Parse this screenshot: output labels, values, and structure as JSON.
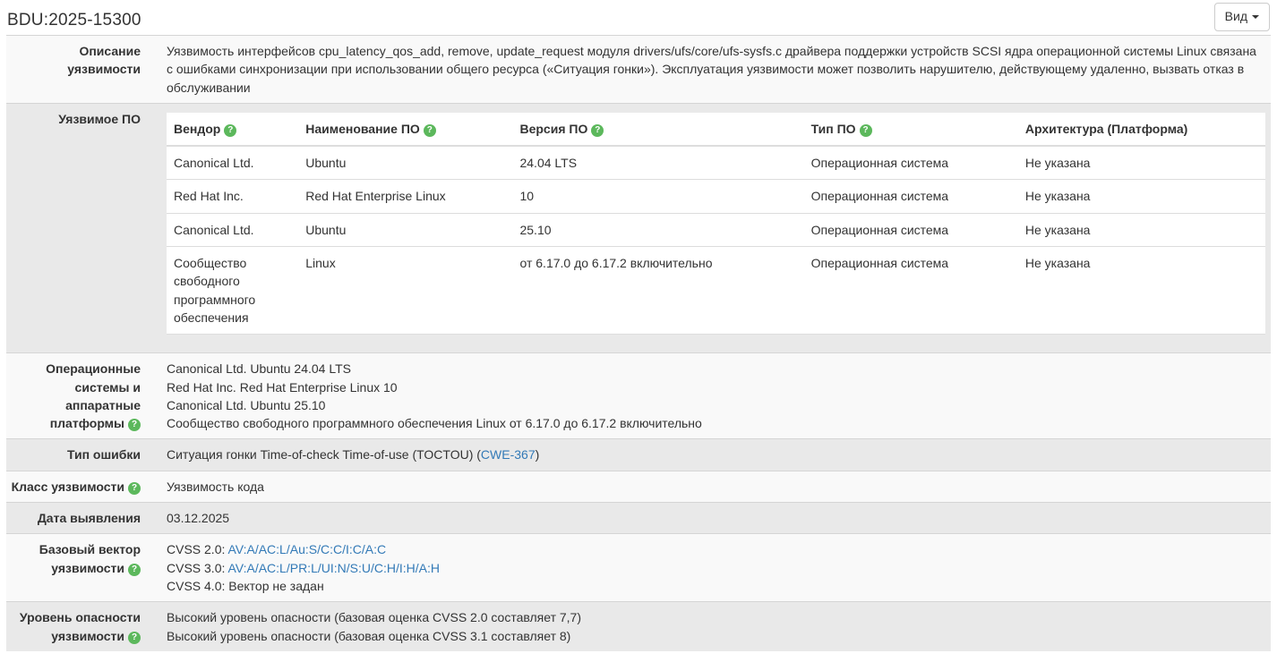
{
  "header": {
    "title": "BDU:2025-15300",
    "view_button_label": "Вид"
  },
  "icons": {
    "help": "?",
    "caret": "▾"
  },
  "colors": {
    "link": "#337ab7",
    "help_icon_bg": "#5cb85c",
    "section_light": "#f9f9f9",
    "section_gray": "#e9e9e9"
  },
  "description": {
    "label": "Описание уязвимости",
    "text": "Уязвимость интерфейсов cpu_latency_qos_add, remove, update_request модуля drivers/ufs/core/ufs-sysfs.c драйвера поддержки устройств SCSI ядра операционной системы Linux связана с ошибками синхронизации при использовании общего ресурса («Ситуация гонки»). Эксплуатация уязвимости может позволить нарушителю, действующему удаленно, вызвать отказ в обслуживании"
  },
  "vulnerable_software": {
    "label": "Уязвимое ПО",
    "table": {
      "headers": [
        {
          "label": "Вендор",
          "help": true
        },
        {
          "label": "Наименование ПО",
          "help": true
        },
        {
          "label": "Версия ПО",
          "help": true
        },
        {
          "label": "Тип ПО",
          "help": true
        },
        {
          "label": "Архитектура (Платформа)",
          "help": false
        }
      ],
      "rows": [
        [
          "Canonical Ltd.",
          "Ubuntu",
          "24.04 LTS",
          "Операционная система",
          "Не указана"
        ],
        [
          "Red Hat Inc.",
          "Red Hat Enterprise Linux",
          "10",
          "Операционная система",
          "Не указана"
        ],
        [
          "Canonical Ltd.",
          "Ubuntu",
          "25.10",
          "Операционная система",
          "Не указана"
        ],
        [
          "Сообщество свободного программного обеспечения",
          "Linux",
          "от 6.17.0 до 6.17.2 включительно",
          "Операционная система",
          "Не указана"
        ]
      ]
    }
  },
  "os_platforms": {
    "label": "Операционные системы и аппаратные платформы",
    "lines": [
      "Canonical Ltd. Ubuntu 24.04 LTS",
      "Red Hat Inc. Red Hat Enterprise Linux 10",
      "Canonical Ltd. Ubuntu 25.10",
      "Сообщество свободного программного обеспечения Linux от 6.17.0 до 6.17.2 включительно"
    ]
  },
  "error_type": {
    "label": "Тип ошибки",
    "text_before": "Ситуация гонки Time-of-check Time-of-use (TOCTOU) (",
    "link": "CWE-367",
    "text_after": ")"
  },
  "vuln_class": {
    "label": "Класс уязвимости",
    "value": "Уязвимость кода"
  },
  "detection_date": {
    "label": "Дата выявления",
    "value": "03.12.2025"
  },
  "cvss": {
    "label": "Базовый вектор уязвимости",
    "lines": [
      {
        "prefix": "CVSS 2.0: ",
        "link": "AV:A/AC:L/Au:S/C:C/I:C/A:C"
      },
      {
        "prefix": "CVSS 3.0: ",
        "link": "AV:A/AC:L/PR:L/UI:N/S:U/C:H/I:H/A:H"
      },
      {
        "prefix": "CVSS 4.0: ",
        "text": "Вектор не задан"
      }
    ]
  },
  "severity": {
    "label": "Уровень опасности уязвимости",
    "lines": [
      "Высокий уровень опасности (базовая оценка CVSS 2.0 составляет 7,7)",
      "Высокий уровень опасности (базовая оценка CVSS 3.1 составляет 8)"
    ]
  }
}
